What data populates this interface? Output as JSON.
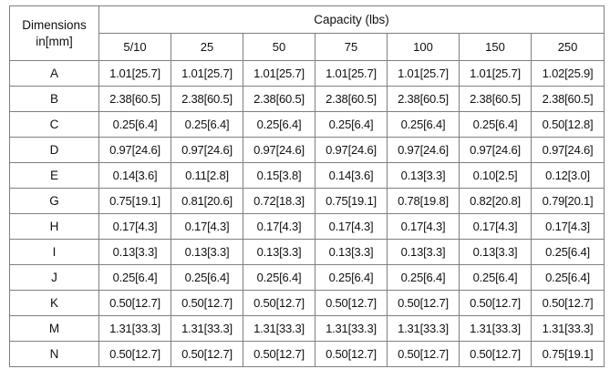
{
  "table": {
    "dimension_header_line1": "Dimensions",
    "dimension_header_line2": "in[mm]",
    "capacity_header": "Capacity (lbs)",
    "capacities": [
      "5/10",
      "25",
      "50",
      "75",
      "100",
      "150",
      "250"
    ],
    "rows": [
      {
        "label": "A",
        "values": [
          "1.01[25.7]",
          "1.01[25.7]",
          "1.01[25.7]",
          "1.01[25.7]",
          "1.01[25.7]",
          "1.01[25.7]",
          "1.02[25.9]"
        ]
      },
      {
        "label": "B",
        "values": [
          "2.38[60.5]",
          "2.38[60.5]",
          "2.38[60.5]",
          "2.38[60.5]",
          "2.38[60.5]",
          "2.38[60.5]",
          "2.38[60.5]"
        ]
      },
      {
        "label": "C",
        "values": [
          "0.25[6.4]",
          "0.25[6.4]",
          "0.25[6.4]",
          "0.25[6.4]",
          "0.25[6.4]",
          "0.25[6.4]",
          "0.50[12.8]"
        ]
      },
      {
        "label": "D",
        "values": [
          "0.97[24.6]",
          "0.97[24.6]",
          "0.97[24.6]",
          "0.97[24.6]",
          "0.97[24.6]",
          "0.97[24.6]",
          "0.97[24.6]"
        ]
      },
      {
        "label": "E",
        "values": [
          "0.14[3.6]",
          "0.11[2.8]",
          "0.15[3.8]",
          "0.14[3.6]",
          "0.13[3.3]",
          "0.10[2.5]",
          "0.12[3.0]"
        ]
      },
      {
        "label": "G",
        "values": [
          "0.75[19.1]",
          "0.81[20.6]",
          "0.72[18.3]",
          "0.75[19.1]",
          "0.78[19.8]",
          "0.82[20.8]",
          "0.79[20.1]"
        ]
      },
      {
        "label": "H",
        "values": [
          "0.17[4.3]",
          "0.17[4.3]",
          "0.17[4.3]",
          "0.17[4.3]",
          "0.17[4.3]",
          "0.17[4.3]",
          "0.17[4.3]"
        ]
      },
      {
        "label": "I",
        "values": [
          "0.13[3.3]",
          "0.13[3.3]",
          "0.13[3.3]",
          "0.13[3.3]",
          "0.13[3.3]",
          "0.13[3.3]",
          "0.25[6.4]"
        ]
      },
      {
        "label": "J",
        "values": [
          "0.25[6.4]",
          "0.25[6.4]",
          "0.25[6.4]",
          "0.25[6.4]",
          "0.25[6.4]",
          "0.25[6.4]",
          "0.25[6.4]"
        ]
      },
      {
        "label": "K",
        "values": [
          "0.50[12.7]",
          "0.50[12.7]",
          "0.50[12.7]",
          "0.50[12.7]",
          "0.50[12.7]",
          "0.50[12.7]",
          "0.50[12.7]"
        ]
      },
      {
        "label": "M",
        "values": [
          "1.31[33.3]",
          "1.31[33.3]",
          "1.31[33.3]",
          "1.31[33.3]",
          "1.31[33.3]",
          "1.31[33.3]",
          "1.31[33.3]"
        ]
      },
      {
        "label": "N",
        "values": [
          "0.50[12.7]",
          "0.50[12.7]",
          "0.50[12.7]",
          "0.50[12.7]",
          "0.50[12.7]",
          "0.50[12.7]",
          "0.75[19.1]"
        ]
      }
    ]
  },
  "colors": {
    "border": "#7f7f7f",
    "text": "#111111",
    "background": "#ffffff"
  }
}
